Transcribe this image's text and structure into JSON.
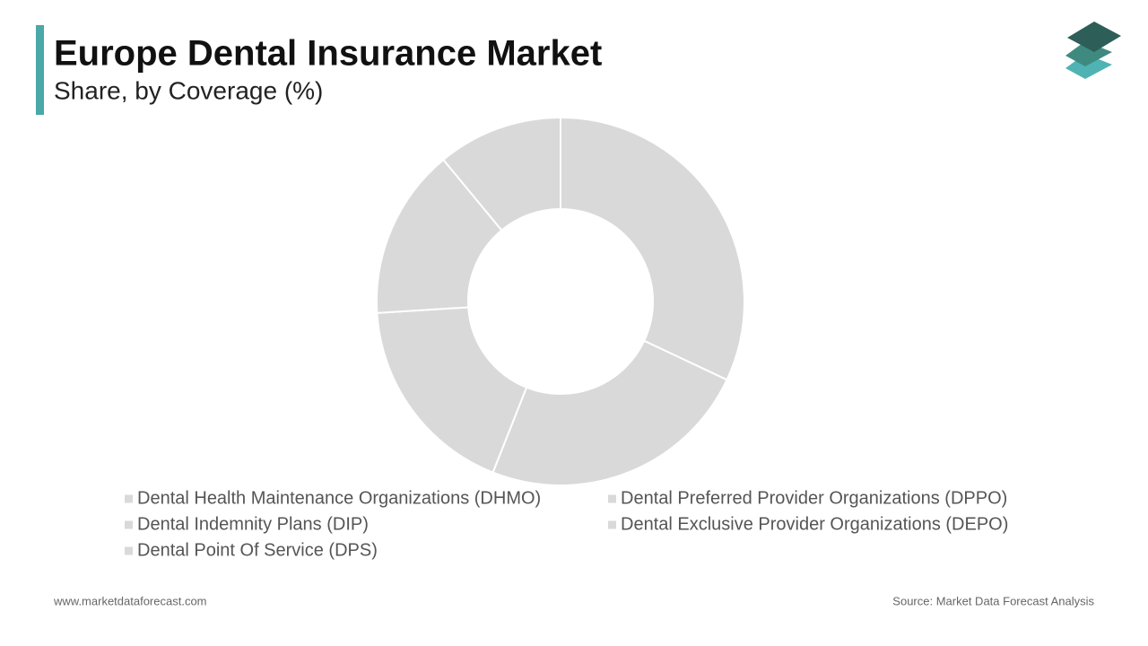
{
  "chart_data": {
    "type": "donut",
    "title": "Europe Dental Insurance Market",
    "subtitle": "Share, by Coverage (%)",
    "categories": [
      "Dental Health Maintenance Organizations (DHMO)",
      "Dental Preferred Provider Organizations (DPPO)",
      "Dental Indemnity Plans (DIP)",
      "Dental Exclusive Provider Organizations (DEPO)",
      "Dental Point Of Service (DPS)"
    ],
    "values": [
      32,
      24,
      18,
      15,
      11
    ],
    "color": "#d9d9d9",
    "footer_left": "www.marketdataforecast.com",
    "footer_right": "Source: Market Data Forecast Analysis"
  }
}
